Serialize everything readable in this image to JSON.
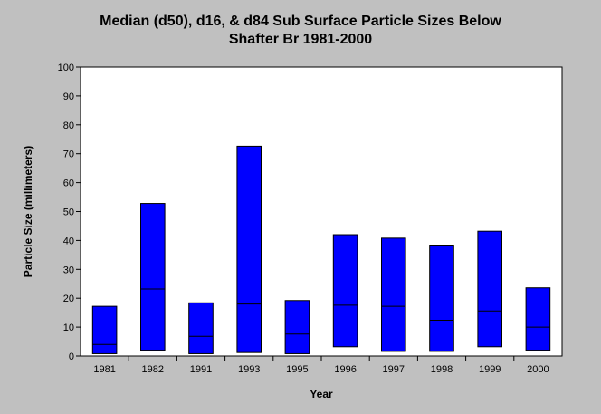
{
  "chart_data": {
    "type": "bar",
    "title": "Median (d50), d16, & d84 Sub Surface Particle Sizes Below",
    "subtitle": "Shafter Br 1981-2000",
    "xlabel": "Year",
    "ylabel": "Particle Size (millimeters)",
    "ylim": [
      0,
      100
    ],
    "yticks": [
      "0",
      "10",
      "20",
      "30",
      "40",
      "50",
      "60",
      "70",
      "80",
      "90",
      "100"
    ],
    "categories": [
      "1981",
      "1982",
      "1991",
      "1993",
      "1995",
      "1996",
      "1997",
      "1998",
      "1999",
      "2000"
    ],
    "series": [
      {
        "name": "d16",
        "values": [
          0.8,
          2.0,
          0.8,
          1.2,
          0.8,
          3.2,
          1.6,
          1.6,
          3.2,
          2.0
        ]
      },
      {
        "name": "d50",
        "values": [
          4.0,
          23.2,
          6.8,
          18.0,
          7.6,
          17.6,
          17.2,
          12.4,
          15.6,
          10.0
        ]
      },
      {
        "name": "d84",
        "values": [
          17.2,
          52.8,
          18.4,
          72.6,
          19.2,
          42.0,
          40.8,
          38.4,
          43.2,
          23.6
        ]
      }
    ],
    "bar_color": "#0000ff",
    "plot_background": "#ffffff",
    "grid": false,
    "legend": "none"
  }
}
